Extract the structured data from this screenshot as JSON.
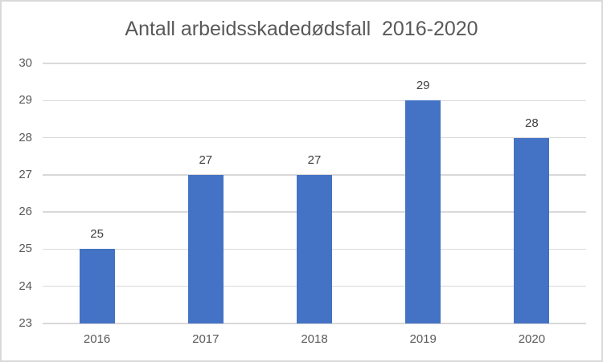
{
  "chart_data": {
    "type": "bar",
    "title": "Antall arbeidsskadedødsfall  2016-2020",
    "categories": [
      "2016",
      "2017",
      "2018",
      "2019",
      "2020"
    ],
    "values": [
      25,
      27,
      27,
      29,
      28
    ],
    "xlabel": "",
    "ylabel": "",
    "ylim": [
      23,
      30
    ],
    "ytick_step": 1,
    "yticks": [
      23,
      24,
      25,
      26,
      27,
      28,
      29,
      30
    ],
    "grid": true,
    "legend_position": "none",
    "data_labels": true,
    "colors": {
      "bar": "#4472C4",
      "gridline": "#D9D9D9",
      "axis_line": "#D9D9D9",
      "axis_text": "#595959",
      "data_label_text": "#404040",
      "title_text": "#595959",
      "chart_border": "#D9D9D9",
      "background": "#FFFFFF"
    }
  }
}
